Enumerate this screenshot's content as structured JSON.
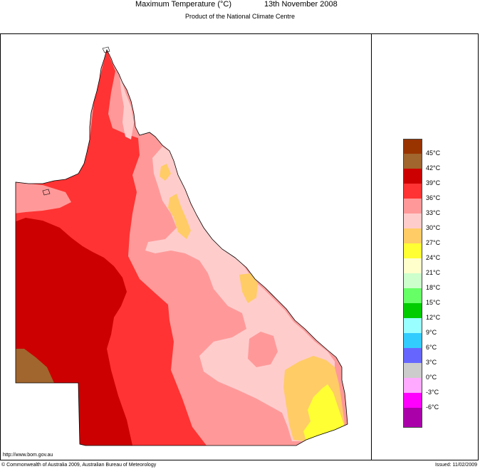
{
  "header": {
    "title": "Maximum Temperature (°C)",
    "date": "13th November 2008",
    "subtitle": "Product of the National Climate Centre"
  },
  "footer": {
    "url": "http://www.bom.gov.au",
    "copyright": "© Commonwealth of Australia 2009, Australian Bureau of Meteorology",
    "issued": "Issued: 11/02/2009"
  },
  "legend": {
    "items": [
      {
        "label": "",
        "color": "#993300"
      },
      {
        "label": "45°C",
        "color": "#a0662e"
      },
      {
        "label": "42°C",
        "color": "#cc0000"
      },
      {
        "label": "39°C",
        "color": "#ff3333"
      },
      {
        "label": "36°C",
        "color": "#ff9999"
      },
      {
        "label": "33°C",
        "color": "#ffcccc"
      },
      {
        "label": "30°C",
        "color": "#ffcc66"
      },
      {
        "label": "27°C",
        "color": "#ffff33"
      },
      {
        "label": "24°C",
        "color": "#ffffcc"
      },
      {
        "label": "21°C",
        "color": "#ccffcc"
      },
      {
        "label": "18°C",
        "color": "#66ff66"
      },
      {
        "label": "15°C",
        "color": "#00cc00"
      },
      {
        "label": "12°C",
        "color": "#99ffff"
      },
      {
        "label": "9°C",
        "color": "#33ccff"
      },
      {
        "label": "6°C",
        "color": "#6666ff"
      },
      {
        "label": "3°C",
        "color": "#cccccc"
      },
      {
        "label": "0°C",
        "color": "#ffaaff"
      },
      {
        "label": "-3°C",
        "color": "#ff00ff"
      },
      {
        "label": "-6°C",
        "color": "#aa00aa"
      }
    ]
  },
  "map": {
    "region": "Queensland",
    "colors": {
      "c45": "#a0662e",
      "c42": "#cc0000",
      "c39": "#ff3333",
      "c36": "#ff9999",
      "c33": "#ffcccc",
      "c30": "#ffcc66",
      "c27": "#ffff33",
      "outline": "#000000"
    }
  }
}
